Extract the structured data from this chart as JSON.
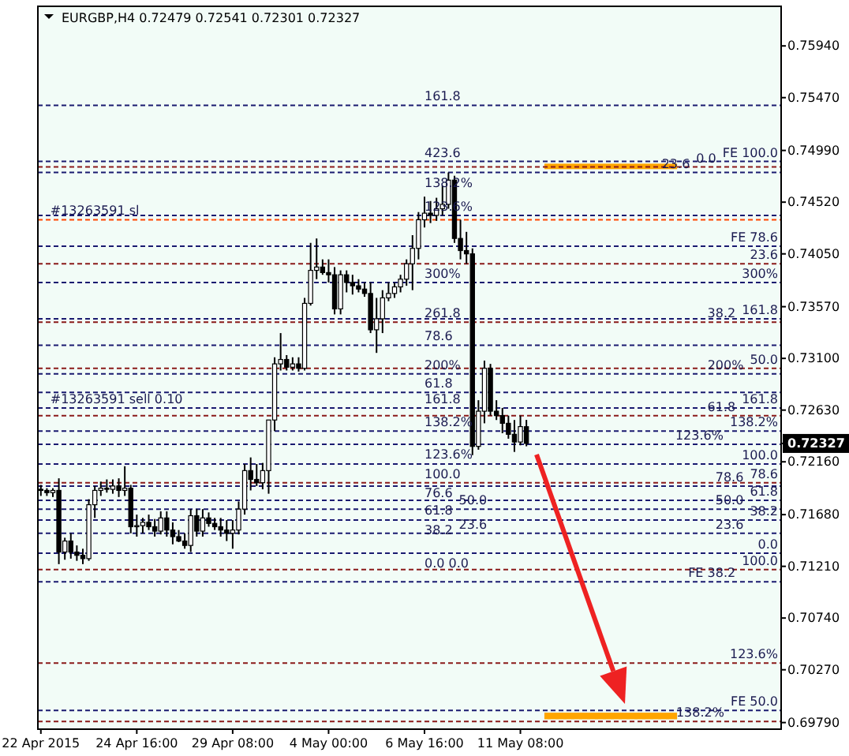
{
  "chart_data": {
    "type": "candlestick",
    "title": "EURGBP,H4 0.72479 0.72541 0.72301 0.72327",
    "color": "#000000",
    "categories": [
      "22 Apr 2015",
      null,
      null,
      null,
      null,
      null,
      null,
      null,
      null,
      null,
      null,
      null,
      null,
      null,
      null,
      null,
      "24 Apr 16:00",
      null,
      null,
      null,
      null,
      null,
      null,
      null,
      null,
      null,
      null,
      null,
      null,
      null,
      null,
      null,
      "29 Apr 08:00",
      null,
      null,
      null,
      null,
      null,
      null,
      null,
      null,
      null,
      null,
      null,
      null,
      null,
      null,
      null,
      "4 May 00:00",
      null,
      null,
      null,
      null,
      null,
      null,
      null,
      null,
      null,
      null,
      null,
      null,
      null,
      null,
      null,
      "6 May 16:00",
      null,
      null,
      null,
      null,
      null,
      null,
      null,
      null,
      null,
      null,
      null,
      null,
      null,
      null,
      null,
      "11 May 08:00",
      null,
      null,
      null,
      null,
      null,
      null,
      null,
      null,
      null,
      null,
      null,
      null,
      null,
      null,
      null,
      null,
      null,
      null,
      null,
      null,
      null,
      null,
      null,
      null,
      null,
      null,
      null,
      null,
      null,
      null,
      null,
      null,
      null,
      null,
      null,
      null,
      null,
      null,
      null,
      null,
      null,
      null,
      null
    ],
    "ohlc": [
      [
        0.7191,
        0.7195,
        0.7185,
        0.719
      ],
      [
        0.719,
        0.7192,
        0.7185,
        0.7188
      ],
      [
        0.7188,
        0.7192,
        0.7184,
        0.719
      ],
      [
        0.719,
        0.7201,
        0.7123,
        0.7134
      ],
      [
        0.7134,
        0.7147,
        0.7127,
        0.7144
      ],
      [
        0.7144,
        0.7151,
        0.7128,
        0.7134
      ],
      [
        0.7134,
        0.714,
        0.7126,
        0.7131
      ],
      [
        0.7131,
        0.7137,
        0.7123,
        0.7128
      ],
      [
        0.7128,
        0.7182,
        0.7126,
        0.7177
      ],
      [
        0.7177,
        0.7194,
        0.7165,
        0.719
      ],
      [
        0.719,
        0.7198,
        0.7185,
        0.7192
      ],
      [
        0.7192,
        0.72,
        0.7188,
        0.7191
      ],
      [
        0.7191,
        0.72,
        0.7187,
        0.7194
      ],
      [
        0.7194,
        0.7201,
        0.7184,
        0.719
      ],
      [
        0.719,
        0.7212,
        0.7185,
        0.7192
      ],
      [
        0.7192,
        0.7195,
        0.7151,
        0.7157
      ],
      [
        0.7157,
        0.7168,
        0.7148,
        0.7158
      ],
      [
        0.7158,
        0.7165,
        0.7151,
        0.7161
      ],
      [
        0.7161,
        0.7168,
        0.7154,
        0.7157
      ],
      [
        0.7157,
        0.7164,
        0.7148,
        0.7153
      ],
      [
        0.7153,
        0.7171,
        0.715,
        0.7165
      ],
      [
        0.7165,
        0.7171,
        0.7148,
        0.7154
      ],
      [
        0.7154,
        0.7161,
        0.7141,
        0.7148
      ],
      [
        0.7148,
        0.7154,
        0.7143,
        0.7144
      ],
      [
        0.7144,
        0.7151,
        0.7137,
        0.714
      ],
      [
        0.714,
        0.7173,
        0.7134,
        0.7167
      ],
      [
        0.7167,
        0.7173,
        0.7148,
        0.7153
      ],
      [
        0.7153,
        0.7173,
        0.7148,
        0.7165
      ],
      [
        0.7165,
        0.717,
        0.7157,
        0.716
      ],
      [
        0.716,
        0.7165,
        0.7154,
        0.7157
      ],
      [
        0.7157,
        0.7165,
        0.7148,
        0.7154
      ],
      [
        0.7154,
        0.7163,
        0.7144,
        0.7151
      ],
      [
        0.7151,
        0.7163,
        0.7137,
        0.7154
      ],
      [
        0.7154,
        0.718,
        0.715,
        0.7173
      ],
      [
        0.7173,
        0.7214,
        0.7168,
        0.7208
      ],
      [
        0.7208,
        0.722,
        0.719,
        0.72
      ],
      [
        0.72,
        0.7214,
        0.7194,
        0.7197
      ],
      [
        0.7197,
        0.7215,
        0.7191,
        0.7208
      ],
      [
        0.7208,
        0.7254,
        0.7187,
        0.7254
      ],
      [
        0.7254,
        0.7311,
        0.7244,
        0.7305
      ],
      [
        0.7305,
        0.7333,
        0.7299,
        0.7309
      ],
      [
        0.7309,
        0.7313,
        0.7299,
        0.7302
      ],
      [
        0.7302,
        0.7311,
        0.7299,
        0.7305
      ],
      [
        0.7305,
        0.7311,
        0.7298,
        0.7301
      ],
      [
        0.7301,
        0.7365,
        0.7299,
        0.736
      ],
      [
        0.736,
        0.7415,
        0.7358,
        0.739
      ],
      [
        0.739,
        0.7419,
        0.7382,
        0.7393
      ],
      [
        0.7393,
        0.74,
        0.7386,
        0.7388
      ],
      [
        0.7388,
        0.74,
        0.7379,
        0.7386
      ],
      [
        0.7386,
        0.7393,
        0.735,
        0.7355
      ],
      [
        0.7355,
        0.739,
        0.735,
        0.7386
      ],
      [
        0.7386,
        0.739,
        0.737,
        0.7379
      ],
      [
        0.7379,
        0.7386,
        0.7368,
        0.7376
      ],
      [
        0.7376,
        0.7382,
        0.737,
        0.7373
      ],
      [
        0.7373,
        0.7379,
        0.7366,
        0.7369
      ],
      [
        0.7369,
        0.7379,
        0.7333,
        0.7336
      ],
      [
        0.7336,
        0.7365,
        0.7315,
        0.7346
      ],
      [
        0.7346,
        0.7372,
        0.7333,
        0.7365
      ],
      [
        0.7365,
        0.7379,
        0.7362,
        0.7369
      ],
      [
        0.7369,
        0.7379,
        0.7365,
        0.7375
      ],
      [
        0.7375,
        0.7386,
        0.737,
        0.7382
      ],
      [
        0.7382,
        0.74,
        0.7376,
        0.7396
      ],
      [
        0.7396,
        0.7422,
        0.7372,
        0.741
      ],
      [
        0.741,
        0.7443,
        0.74,
        0.7436
      ],
      [
        0.7436,
        0.7457,
        0.7429,
        0.7442
      ],
      [
        0.7442,
        0.7453,
        0.7433,
        0.744
      ],
      [
        0.744,
        0.7456,
        0.7435,
        0.7446
      ],
      [
        0.7446,
        0.7467,
        0.744,
        0.745
      ],
      [
        0.745,
        0.7479,
        0.7446,
        0.7472
      ],
      [
        0.7472,
        0.7476,
        0.7415,
        0.7419
      ],
      [
        0.7419,
        0.7436,
        0.74,
        0.7408
      ],
      [
        0.7408,
        0.7425,
        0.7396,
        0.7405
      ],
      [
        0.7405,
        0.741,
        0.7222,
        0.723
      ],
      [
        0.723,
        0.7272,
        0.7227,
        0.7262
      ],
      [
        0.7262,
        0.7308,
        0.7251,
        0.7301
      ],
      [
        0.7301,
        0.7305,
        0.7258,
        0.7262
      ],
      [
        0.7262,
        0.7272,
        0.7254,
        0.7258
      ],
      [
        0.7258,
        0.7265,
        0.7242,
        0.7251
      ],
      [
        0.7251,
        0.7258,
        0.7237,
        0.7241
      ],
      [
        0.7241,
        0.7254,
        0.7225,
        0.7234
      ],
      [
        0.7234,
        0.7258,
        0.7231,
        0.7248
      ],
      [
        0.72479,
        0.72541,
        0.72301,
        0.72327
      ],
      null,
      null,
      null,
      null,
      null,
      null,
      null,
      null,
      null,
      null,
      null,
      null,
      null,
      null,
      null,
      null,
      null,
      null,
      null,
      null,
      null,
      null,
      null,
      null,
      null,
      null,
      null,
      null,
      null,
      null,
      null,
      null,
      null,
      null,
      null,
      null,
      null,
      null,
      null,
      null,
      null,
      null
    ],
    "ylim": [
      0.6973,
      0.763
    ],
    "yticks": [
      {
        "value": 0.7594,
        "label": "0.75940"
      },
      {
        "value": 0.7547,
        "label": "0.75470"
      },
      {
        "value": 0.7499,
        "label": "0.74990"
      },
      {
        "value": 0.7452,
        "label": "0.74520"
      },
      {
        "value": 0.7405,
        "label": "0.74050"
      },
      {
        "value": 0.7357,
        "label": "0.73570"
      },
      {
        "value": 0.731,
        "label": "0.73100"
      },
      {
        "value": 0.7263,
        "label": "0.72630"
      },
      {
        "value": 0.72327,
        "label": "0.72327"
      },
      {
        "value": 0.7216,
        "label": "0.72160"
      },
      {
        "value": 0.7168,
        "label": "0.71680"
      },
      {
        "value": 0.7121,
        "label": "0.71210"
      },
      {
        "value": 0.7074,
        "label": "0.70740"
      },
      {
        "value": 0.7027,
        "label": "0.70270"
      },
      {
        "value": 0.6979,
        "label": "0.69790"
      }
    ],
    "grid": false,
    "ref_lines": [
      {
        "axis": "y",
        "value": 0.754,
        "color": "#1a1a70",
        "line_style": "dashed"
      },
      {
        "axis": "y",
        "value": 0.7489,
        "color": "#1a1a70",
        "line_style": "dashed"
      },
      {
        "axis": "y",
        "value": 0.7484,
        "color": "#8b1a1a",
        "line_style": "dashed"
      },
      {
        "axis": "y",
        "value": 0.7479,
        "color": "#1a1a70",
        "line_style": "dashed"
      },
      {
        "axis": "y",
        "value": 0.744,
        "color": "#1a1a70",
        "line_style": "dashed"
      },
      {
        "axis": "y",
        "value": 0.7436,
        "color": "#ff4500",
        "line_style": "dashed"
      },
      {
        "axis": "y",
        "value": 0.7412,
        "color": "#1a1a70",
        "line_style": "dashed"
      },
      {
        "axis": "y",
        "value": 0.7396,
        "color": "#8b1a1a",
        "line_style": "dashed"
      },
      {
        "axis": "y",
        "value": 0.7379,
        "color": "#1a1a70",
        "line_style": "dashed"
      },
      {
        "axis": "y",
        "value": 0.7346,
        "color": "#1a1a70",
        "line_style": "dashed"
      },
      {
        "axis": "y",
        "value": 0.7343,
        "color": "#8b1a1a",
        "line_style": "dashed"
      },
      {
        "axis": "y",
        "value": 0.7322,
        "color": "#1a1a70",
        "line_style": "dashed"
      },
      {
        "axis": "y",
        "value": 0.7301,
        "color": "#8b1a1a",
        "line_style": "dashed"
      },
      {
        "axis": "y",
        "value": 0.7296,
        "color": "#1a1a70",
        "line_style": "dashed"
      },
      {
        "axis": "y",
        "value": 0.7279,
        "color": "#1a1a70",
        "line_style": "dashed"
      },
      {
        "axis": "y",
        "value": 0.7265,
        "color": "#1a1a70",
        "line_style": "dashed"
      },
      {
        "axis": "y",
        "value": 0.7258,
        "color": "#8b1a1a",
        "line_style": "dashed"
      },
      {
        "axis": "y",
        "value": 0.7244,
        "color": "#1a1a70",
        "line_style": "dashed"
      },
      {
        "axis": "y",
        "value": 0.7232,
        "color": "#1a1a70",
        "line_style": "dashed"
      },
      {
        "axis": "y",
        "value": 0.7214,
        "color": "#1a1a70",
        "line_style": "dashed"
      },
      {
        "axis": "y",
        "value": 0.7197,
        "color": "#8b1a1a",
        "line_style": "dashed"
      },
      {
        "axis": "y",
        "value": 0.7194,
        "color": "#1a1a70",
        "line_style": "dashed"
      },
      {
        "axis": "y",
        "value": 0.7181,
        "color": "#1a1a70",
        "line_style": "dashed"
      },
      {
        "axis": "y",
        "value": 0.7173,
        "color": "#1a1a70",
        "line_style": "dashed"
      },
      {
        "axis": "y",
        "value": 0.7163,
        "color": "#1a1a70",
        "line_style": "dashed"
      },
      {
        "axis": "y",
        "value": 0.7151,
        "color": "#1a1a70",
        "line_style": "dashed"
      },
      {
        "axis": "y",
        "value": 0.7133,
        "color": "#1a1a70",
        "line_style": "dashed"
      },
      {
        "axis": "y",
        "value": 0.7118,
        "color": "#8b1a1a",
        "line_style": "dashed"
      },
      {
        "axis": "y",
        "value": 0.7107,
        "color": "#1a1a70",
        "line_style": "dashed"
      },
      {
        "axis": "y",
        "value": 0.7033,
        "color": "#8b1a1a",
        "line_style": "dashed"
      },
      {
        "axis": "y",
        "value": 0.699,
        "color": "#1a1a70",
        "line_style": "dashed"
      },
      {
        "axis": "y",
        "value": 0.698,
        "color": "#8b1a1a",
        "line_style": "dashed"
      }
    ],
    "bands": [
      {
        "axis": "y",
        "from": 0.7482,
        "to": 0.7487,
        "color": "#ffa500"
      },
      {
        "axis": "y",
        "from": 0.6982,
        "to": 0.6988,
        "color": "#ffa500"
      }
    ],
    "annotations": [
      {
        "text": "#13263591 sl",
        "x": "22 Apr 2015",
        "y": 0.7436
      },
      {
        "text": "#13263591 sell 0.10",
        "x": "22 Apr 2015",
        "y": 0.7265
      },
      {
        "text": "161.8",
        "x": "6 May 16:00",
        "y": 0.754
      },
      {
        "text": "423.6",
        "x": "6 May 16:00",
        "y": 0.7489
      },
      {
        "text": "138.2%",
        "x": "6 May 16:00",
        "y": 0.7479
      },
      {
        "text": "123.6%",
        "x": "6 May 16:00",
        "y": 0.744
      },
      {
        "text": "300%",
        "x": "6 May 16:00",
        "y": 0.7379
      },
      {
        "text": "261.8",
        "x": "6 May 16:00",
        "y": 0.7343
      },
      {
        "text": "78.6",
        "x": "6 May 16:00",
        "y": 0.7322
      },
      {
        "text": "200%",
        "x": "6 May 16:00",
        "y": 0.7296
      },
      {
        "text": "61.8",
        "x": "6 May 16:00",
        "y": 0.7279
      },
      {
        "text": "161.8",
        "x": "6 May 16:00",
        "y": 0.7265
      },
      {
        "text": "138.2%",
        "x": "6 May 16:00",
        "y": 0.7244
      },
      {
        "text": "123.6%",
        "x": "6 May 16:00",
        "y": 0.7232
      },
      {
        "text": "100.0",
        "x": "6 May 16:00",
        "y": 0.7214
      },
      {
        "text": "76.6",
        "x": "6 May 16:00",
        "y": 0.7197
      },
      {
        "text": "61.8",
        "x": "6 May 16:00",
        "y": 0.7181
      },
      {
        "text": "50.0",
        "x": "6 May 16:00",
        "y": 0.7173
      },
      {
        "text": "38.2",
        "x": "6 May 16:00",
        "y": 0.7163
      },
      {
        "text": "23.6",
        "x": "6 May 16:00",
        "y": 0.7151
      },
      {
        "text": "0.0 0.0",
        "x": "6 May 16:00",
        "y": 0.7133
      },
      {
        "text": "FE 100.0",
        "y": 0.7489
      },
      {
        "text": "0.0",
        "y": 0.7484
      },
      {
        "text": "23.6",
        "y": 0.7479
      },
      {
        "text": "FE 78.6",
        "y": 0.7412
      },
      {
        "text": "23.6",
        "y": 0.7396
      },
      {
        "text": "300%",
        "y": 0.7379
      },
      {
        "text": "161.8",
        "y": 0.7346
      },
      {
        "text": "38.2",
        "y": 0.7343
      },
      {
        "text": "50.0",
        "y": 0.7301
      },
      {
        "text": "200%",
        "y": 0.7296
      },
      {
        "text": "161.8",
        "y": 0.7265
      },
      {
        "text": "61.8",
        "y": 0.7258
      },
      {
        "text": "138.2%",
        "y": 0.7244
      },
      {
        "text": "123.6%",
        "y": 0.7232
      },
      {
        "text": "100.0",
        "y": 0.7214
      },
      {
        "text": "78.6",
        "y": 0.7197
      },
      {
        "text": "78.6",
        "y": 0.7194
      },
      {
        "text": "61.8",
        "y": 0.7181
      },
      {
        "text": "50.0",
        "y": 0.7173
      },
      {
        "text": "38.2",
        "y": 0.7163
      },
      {
        "text": "23.6",
        "y": 0.7151
      },
      {
        "text": "0.0",
        "y": 0.7133
      },
      {
        "text": "100.0",
        "y": 0.7118
      },
      {
        "text": "FE 38.2",
        "y": 0.7107
      },
      {
        "text": "123.6%",
        "y": 0.7033
      },
      {
        "text": "FE 50.0",
        "y": 0.699
      },
      {
        "text": "138.2%",
        "y": 0.698
      }
    ]
  }
}
